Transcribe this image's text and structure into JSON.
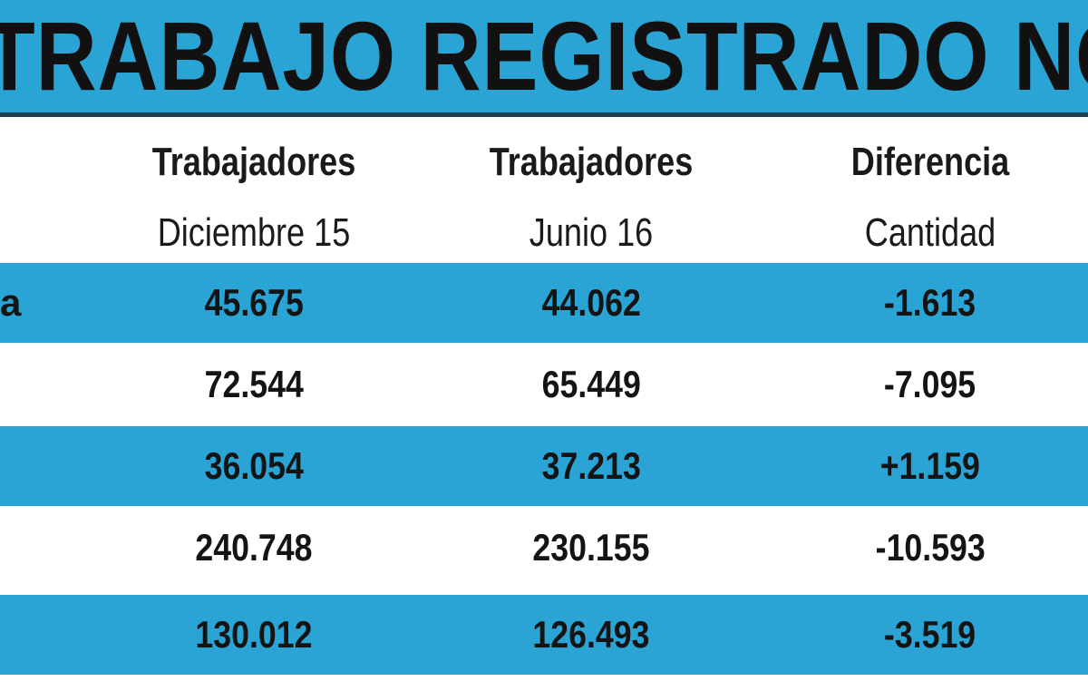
{
  "header": {
    "title": "TRABAJO REGISTRADO NOA"
  },
  "table": {
    "columns": [
      {
        "line1": "Trabajadores",
        "line2": "Diciembre 15"
      },
      {
        "line1": "Trabajadores",
        "line2": "Junio 16"
      },
      {
        "line1": "Diferencia",
        "line2": "Cantidad"
      }
    ],
    "rows": [
      {
        "label": "a",
        "values": [
          "45.675",
          "44.062",
          "-1.613"
        ]
      },
      {
        "values": [
          "72.544",
          "65.449",
          "-7.095"
        ]
      },
      {
        "values": [
          "36.054",
          "37.213",
          "+1.159"
        ]
      },
      {
        "values": [
          "240.748",
          "230.155",
          "-10.593"
        ]
      },
      {
        "values": [
          "130.012",
          "126.493",
          "-3.519"
        ]
      }
    ]
  }
}
